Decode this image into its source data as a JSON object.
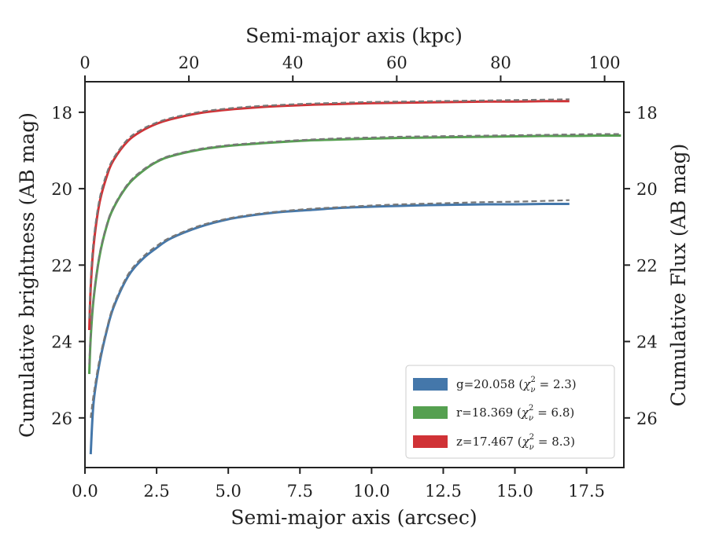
{
  "chart_data": {
    "type": "line",
    "xlabel": "Semi-major axis (arcsec)",
    "x2label": "Semi-major axis (kpc)",
    "ylabel": "Cumulative brightness (AB mag)",
    "y2label": "Cumulative Flux (AB mag)",
    "xlim": [
      0,
      18.8
    ],
    "x2lim": [
      0,
      103.7
    ],
    "ylim": [
      27.3,
      17.2
    ],
    "y_inverted": true,
    "xticks": [
      "0.0",
      "2.5",
      "5.0",
      "7.5",
      "10.0",
      "12.5",
      "15.0",
      "17.5"
    ],
    "xtick_values": [
      0,
      2.5,
      5,
      7.5,
      10,
      12.5,
      15,
      17.5
    ],
    "x2ticks": [
      "0",
      "20",
      "40",
      "60",
      "80",
      "100"
    ],
    "x2tick_values": [
      0,
      20,
      40,
      60,
      80,
      100
    ],
    "yticks": [
      "18",
      "20",
      "22",
      "24",
      "26"
    ],
    "ytick_values": [
      18,
      20,
      22,
      24,
      26
    ],
    "legend_position": "lower-right",
    "series": [
      {
        "name": "g=20.058 (χ²ᵥ = 2.3)",
        "legend_main": "g=20.058 (",
        "legend_chi": "χ",
        "legend_nu": "ν",
        "legend_sq": "2",
        "legend_tail": " = 2.3)",
        "color": "#4477aa",
        "x": [
          0.2,
          0.3,
          0.5,
          0.75,
          1.0,
          1.5,
          2.0,
          2.5,
          3.0,
          4.0,
          5.0,
          6.0,
          7.0,
          8.0,
          9.0,
          10.0,
          11.0,
          12.0,
          13.0,
          14.0,
          15.0,
          16.0,
          16.9
        ],
        "y": [
          26.95,
          25.6,
          24.6,
          23.75,
          23.1,
          22.3,
          21.85,
          21.55,
          21.3,
          21.0,
          20.8,
          20.68,
          20.6,
          20.55,
          20.5,
          20.47,
          20.45,
          20.43,
          20.42,
          20.41,
          20.41,
          20.4,
          20.4
        ],
        "model_y": [
          26.0,
          25.4,
          24.5,
          23.7,
          23.05,
          22.25,
          21.8,
          21.5,
          21.27,
          20.97,
          20.78,
          20.66,
          20.58,
          20.52,
          20.48,
          20.44,
          20.41,
          20.39,
          20.37,
          20.35,
          20.34,
          20.32,
          20.3
        ]
      },
      {
        "name": "r=18.369 (χ²ᵥ = 6.8)",
        "legend_main": "r=18.369 (",
        "legend_chi": "χ",
        "legend_nu": "ν",
        "legend_sq": "2",
        "legend_tail": " = 6.8)",
        "color": "#55a050",
        "x": [
          0.15,
          0.2,
          0.3,
          0.5,
          0.75,
          1.0,
          1.5,
          2.0,
          2.5,
          3.0,
          4.0,
          5.0,
          6.0,
          7.0,
          8.0,
          9.0,
          10.0,
          11.0,
          12.0,
          13.0,
          14.0,
          15.0,
          16.0,
          17.0,
          18.0,
          18.7
        ],
        "y": [
          24.85,
          23.9,
          22.9,
          21.8,
          21.0,
          20.5,
          19.9,
          19.55,
          19.3,
          19.15,
          18.98,
          18.88,
          18.82,
          18.77,
          18.73,
          18.71,
          18.69,
          18.67,
          18.66,
          18.65,
          18.64,
          18.63,
          18.62,
          18.62,
          18.61,
          18.61
        ],
        "model_y": [
          24.6,
          23.8,
          22.85,
          21.75,
          20.97,
          20.47,
          19.87,
          19.52,
          19.28,
          19.13,
          18.96,
          18.86,
          18.8,
          18.75,
          18.71,
          18.68,
          18.66,
          18.64,
          18.63,
          18.62,
          18.61,
          18.6,
          18.59,
          18.58,
          18.57,
          18.57
        ]
      },
      {
        "name": "z=17.467 (χ²ᵥ = 8.3)",
        "legend_main": "z=17.467 (",
        "legend_chi": "χ",
        "legend_nu": "ν",
        "legend_sq": "2",
        "legend_tail": " = 8.3)",
        "color": "#d03236",
        "x": [
          0.15,
          0.2,
          0.3,
          0.5,
          0.75,
          1.0,
          1.5,
          2.0,
          2.5,
          3.0,
          4.0,
          5.0,
          6.0,
          7.0,
          8.0,
          9.0,
          10.0,
          11.0,
          12.0,
          13.0,
          14.0,
          15.0,
          16.0,
          16.9
        ],
        "y": [
          23.7,
          22.6,
          21.5,
          20.4,
          19.7,
          19.25,
          18.75,
          18.48,
          18.3,
          18.18,
          18.02,
          17.93,
          17.87,
          17.83,
          17.8,
          17.78,
          17.76,
          17.75,
          17.74,
          17.73,
          17.72,
          17.72,
          17.71,
          17.71
        ],
        "model_y": [
          23.4,
          22.4,
          21.35,
          20.3,
          19.62,
          19.2,
          18.7,
          18.44,
          18.27,
          18.15,
          17.99,
          17.9,
          17.84,
          17.8,
          17.77,
          17.75,
          17.73,
          17.72,
          17.71,
          17.7,
          17.69,
          17.68,
          17.67,
          17.66
        ]
      }
    ],
    "model_line_style": "dashed",
    "model_line_color": "#777777"
  }
}
